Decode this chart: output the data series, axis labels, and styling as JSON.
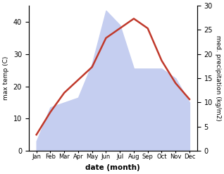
{
  "months": [
    "Jan",
    "Feb",
    "Mar",
    "Apr",
    "May",
    "Jun",
    "Jul",
    "Aug",
    "Sep",
    "Oct",
    "Nov",
    "Dec"
  ],
  "temperature": [
    5,
    12,
    18,
    22,
    26,
    35,
    38,
    41,
    38,
    28,
    21,
    16
  ],
  "precipitation": [
    2,
    9,
    10,
    11,
    18,
    29,
    26,
    17,
    17,
    17,
    15,
    10
  ],
  "temp_color": "#c0392b",
  "precip_fill_color": "#c5cef0",
  "left_ylabel": "max temp (C)",
  "right_ylabel": "med. precipitation (kg/m2)",
  "xlabel": "date (month)",
  "ylim_left": [
    0,
    45
  ],
  "ylim_right": [
    0,
    30
  ],
  "right_ticks": [
    0,
    5,
    10,
    15,
    20,
    25,
    30
  ],
  "left_ticks": [
    0,
    10,
    20,
    30,
    40
  ],
  "figsize": [
    3.18,
    2.47
  ],
  "dpi": 100
}
